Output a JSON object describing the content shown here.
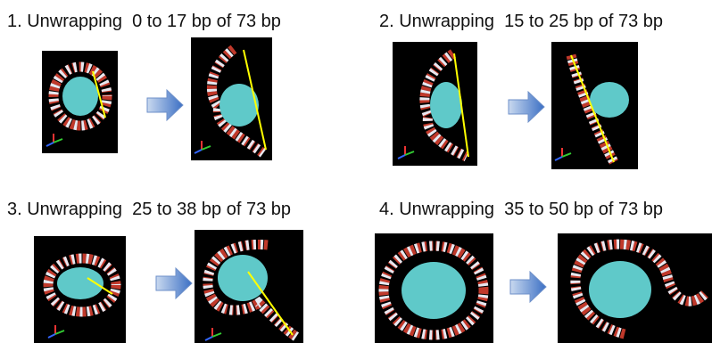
{
  "panels": [
    {
      "title": "1. Unwrapping  0 to 17 bp of 73 bp"
    },
    {
      "title": "2. Unwrapping  15 to 25 bp of 73 bp"
    },
    {
      "title": "3. Unwrapping  25 to 38 bp of 73 bp"
    },
    {
      "title": "4. Unwrapping  35 to 50 bp of 73 bp"
    }
  ]
}
